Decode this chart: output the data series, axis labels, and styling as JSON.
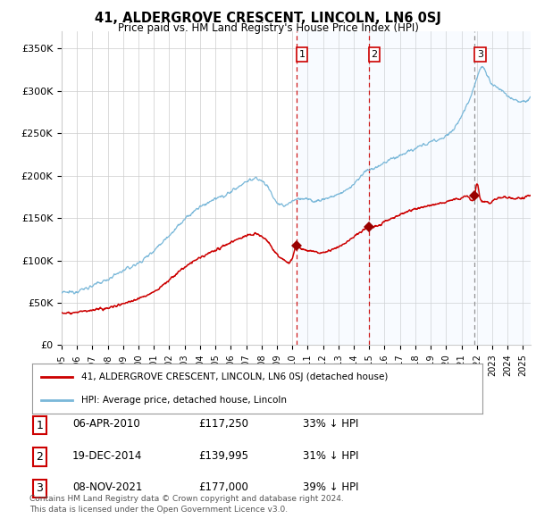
{
  "title": "41, ALDERGROVE CRESCENT, LINCOLN, LN6 0SJ",
  "subtitle": "Price paid vs. HM Land Registry's House Price Index (HPI)",
  "ylabel_ticks": [
    "£0",
    "£50K",
    "£100K",
    "£150K",
    "£200K",
    "£250K",
    "£300K",
    "£350K"
  ],
  "ytick_vals": [
    0,
    50000,
    100000,
    150000,
    200000,
    250000,
    300000,
    350000
  ],
  "ylim": [
    0,
    370000
  ],
  "xlim_start": 1995.0,
  "xlim_end": 2025.5,
  "sale_dates": [
    2010.27,
    2014.97,
    2021.86
  ],
  "sale_prices": [
    117250,
    139995,
    177000
  ],
  "sale_labels": [
    "1",
    "2",
    "3"
  ],
  "sale_line_colors": [
    "#cc0000",
    "#cc0000",
    "#888888"
  ],
  "sale_line_styles": [
    "--",
    "--",
    "--"
  ],
  "hpi_color": "#7ab8d9",
  "price_color": "#cc0000",
  "sale_marker_color": "#990000",
  "shade_color": "#ddeeff",
  "legend_label_red": "41, ALDERGROVE CRESCENT, LINCOLN, LN6 0SJ (detached house)",
  "legend_label_blue": "HPI: Average price, detached house, Lincoln",
  "table_rows": [
    [
      "1",
      "06-APR-2010",
      "£117,250",
      "33% ↓ HPI"
    ],
    [
      "2",
      "19-DEC-2014",
      "£139,995",
      "31% ↓ HPI"
    ],
    [
      "3",
      "08-NOV-2021",
      "£177,000",
      "39% ↓ HPI"
    ]
  ],
  "footnote": "Contains HM Land Registry data © Crown copyright and database right 2024.\nThis data is licensed under the Open Government Licence v3.0.",
  "background_color": "#ffffff",
  "grid_color": "#cccccc"
}
